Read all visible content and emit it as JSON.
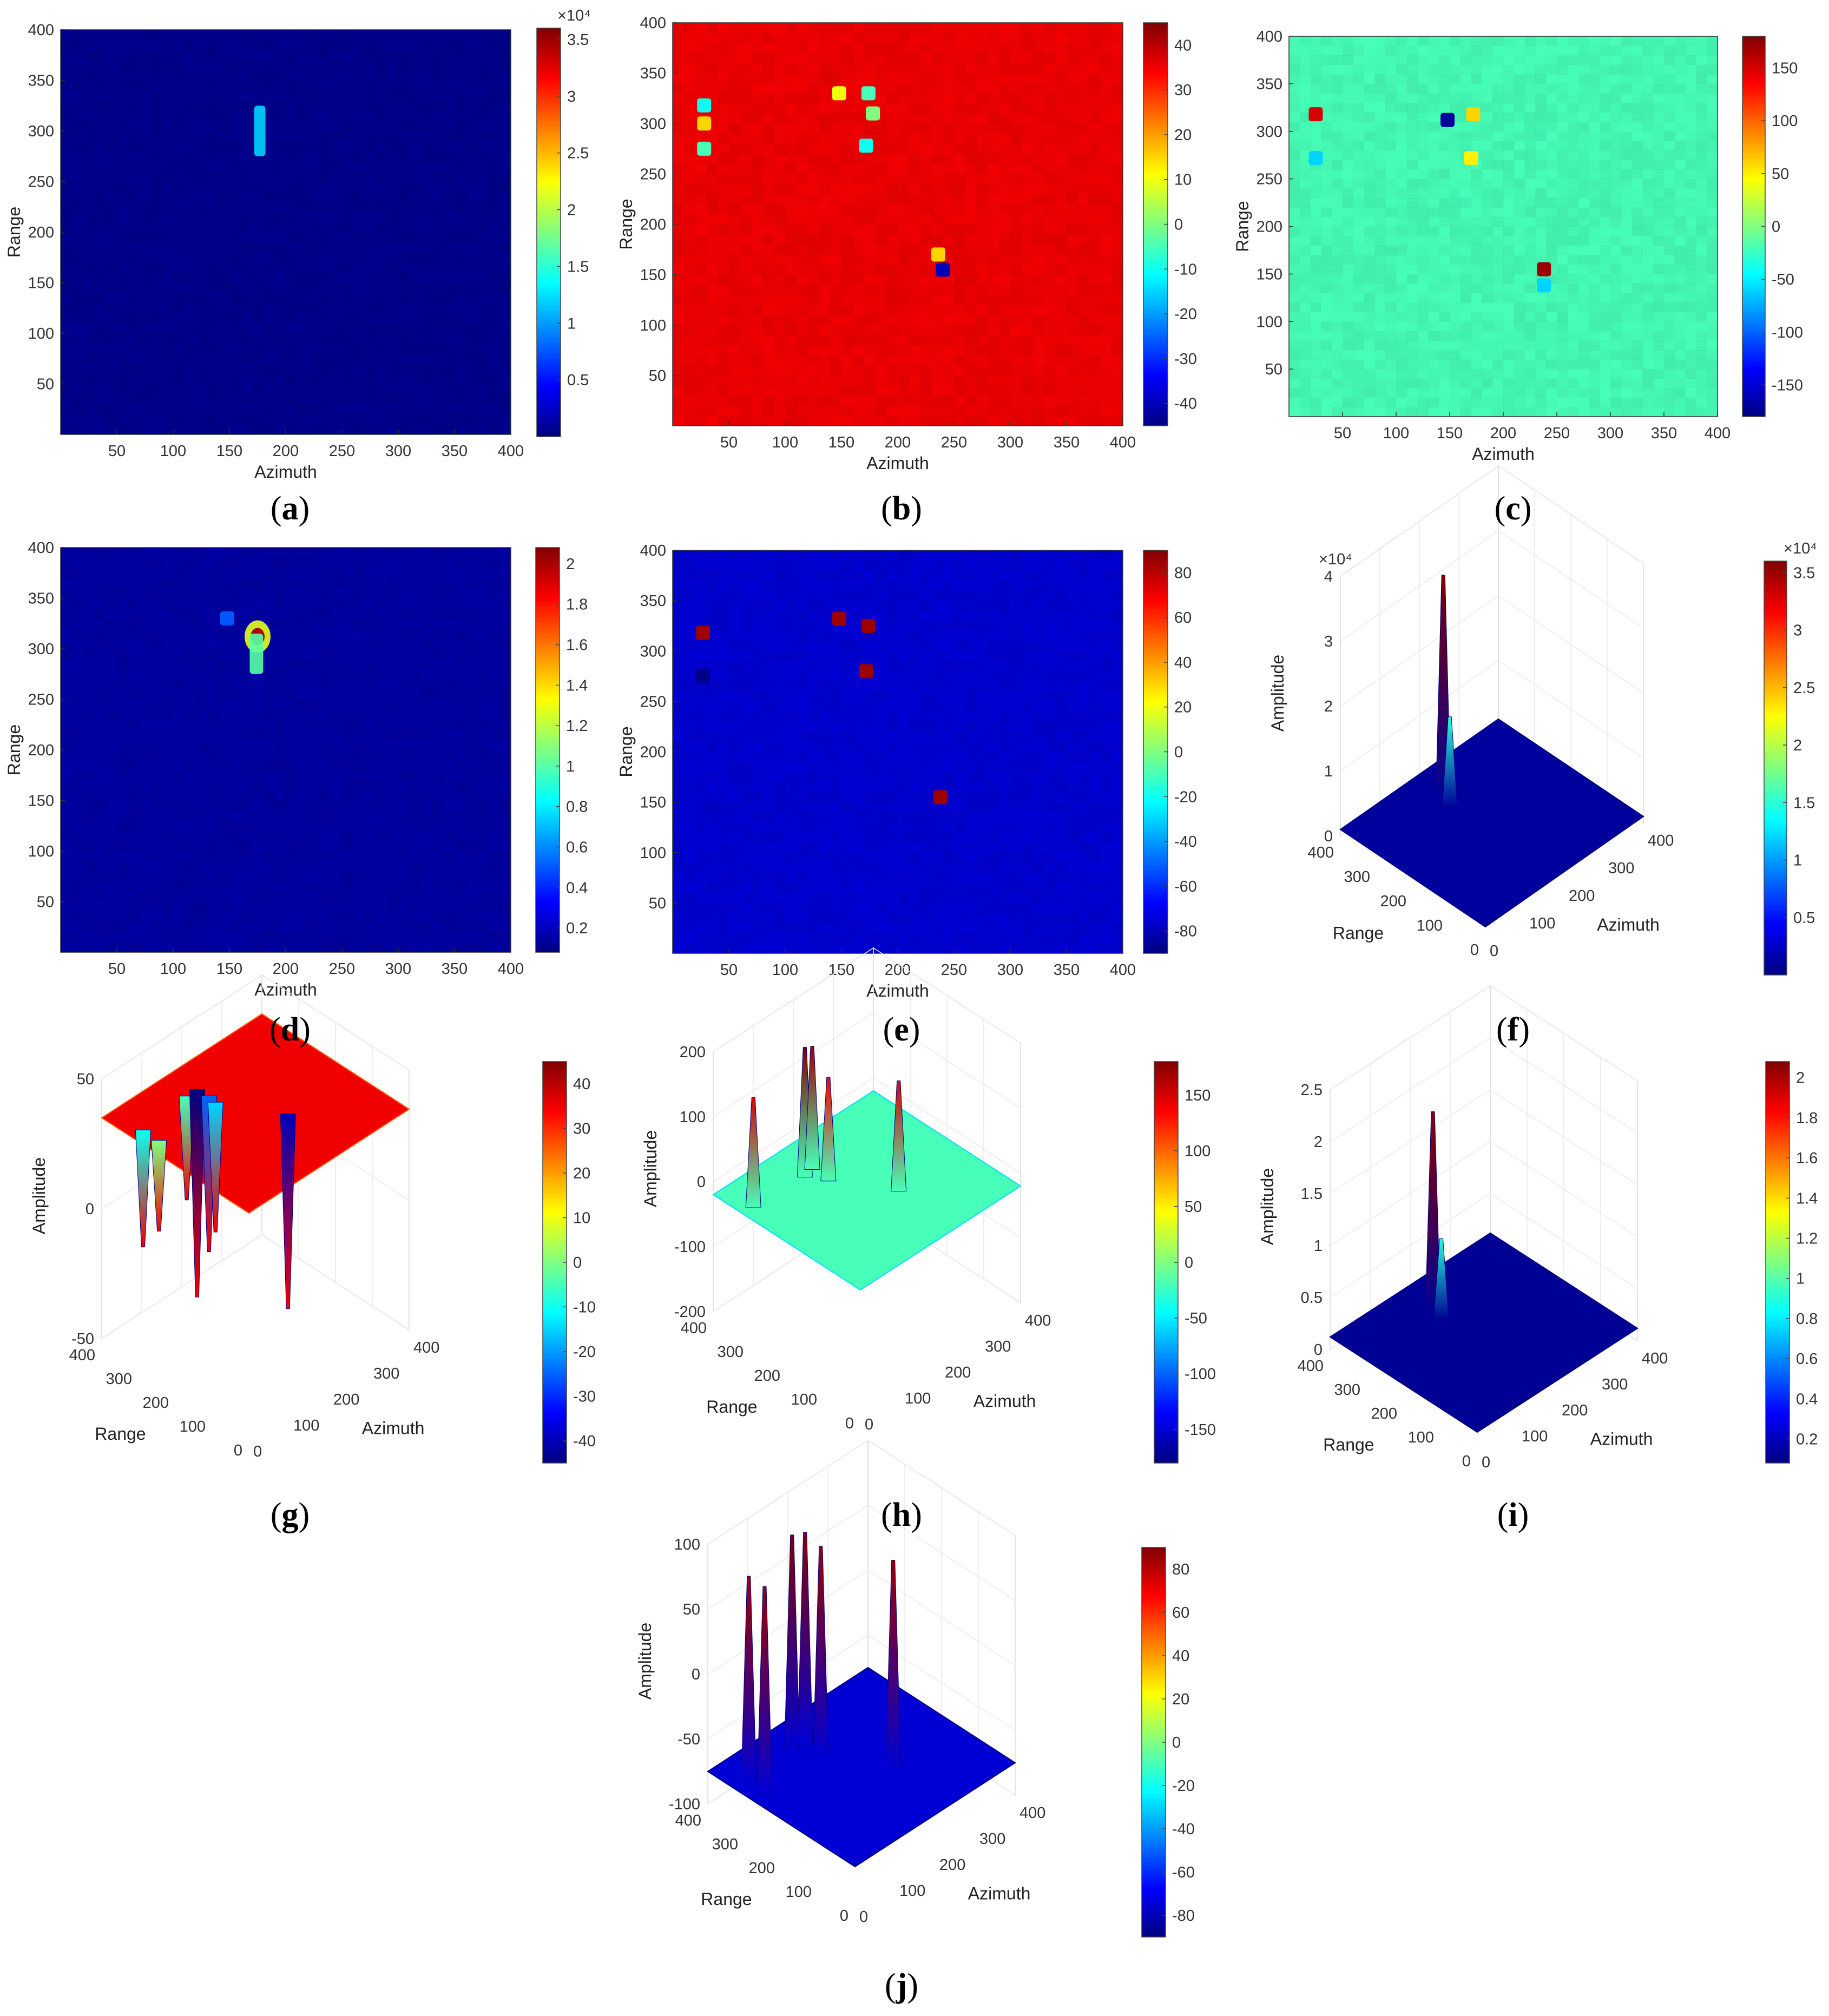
{
  "figure": {
    "panel_letters": [
      "a",
      "b",
      "c",
      "d",
      "e",
      "f",
      "g",
      "h",
      "i",
      "j"
    ]
  },
  "chart_data": [
    {
      "panel": "a",
      "type": "heatmap",
      "view": "2d",
      "xlabel": "Azimuth",
      "ylabel": "Range",
      "x_ticks": [
        50,
        100,
        150,
        200,
        250,
        300,
        350,
        400
      ],
      "y_ticks": [
        50,
        100,
        150,
        200,
        250,
        300,
        350,
        400
      ],
      "xlim": [
        0,
        400
      ],
      "ylim": [
        0,
        400
      ],
      "colorbar_ticks": [
        0.5,
        1,
        1.5,
        2,
        2.5,
        3,
        3.5
      ],
      "colorbar_tick_labels": [
        "0.5",
        "1",
        "1.5",
        "2",
        "2.5",
        "3",
        "3.5"
      ],
      "colorbar_range": [
        0,
        3.6
      ],
      "colorbar_exponent": "×10⁴",
      "background_value": 0.05,
      "features": [
        {
          "type": "streak",
          "azimuth": [
            172,
            182
          ],
          "range": [
            275,
            325
          ],
          "value": 1.2
        }
      ]
    },
    {
      "panel": "b",
      "type": "heatmap",
      "view": "2d",
      "xlabel": "Azimuth",
      "ylabel": "Range",
      "x_ticks": [
        50,
        100,
        150,
        200,
        250,
        300,
        350,
        400
      ],
      "y_ticks": [
        50,
        100,
        150,
        200,
        250,
        300,
        350,
        400
      ],
      "xlim": [
        0,
        400
      ],
      "ylim": [
        0,
        400
      ],
      "colorbar_ticks": [
        -40,
        -30,
        -20,
        -10,
        0,
        10,
        20,
        30,
        40
      ],
      "colorbar_tick_labels": [
        "-40",
        "-30",
        "-20",
        "-10",
        "0",
        "10",
        "20",
        "30",
        "40"
      ],
      "colorbar_range": [
        -45,
        45
      ],
      "background_value": 35,
      "features": [
        {
          "type": "blob",
          "azimuth": 28,
          "range": 318,
          "value": -10
        },
        {
          "type": "blob",
          "azimuth": 28,
          "range": 300,
          "value": 15
        },
        {
          "type": "blob",
          "azimuth": 28,
          "range": 275,
          "value": -5
        },
        {
          "type": "blob",
          "azimuth": 148,
          "range": 330,
          "value": 10
        },
        {
          "type": "blob",
          "azimuth": 174,
          "range": 330,
          "value": -5
        },
        {
          "type": "blob",
          "azimuth": 178,
          "range": 310,
          "value": 0
        },
        {
          "type": "blob",
          "azimuth": 172,
          "range": 278,
          "value": -10
        },
        {
          "type": "blob",
          "azimuth": 240,
          "range": 155,
          "value": -40
        },
        {
          "type": "blob",
          "azimuth": 236,
          "range": 170,
          "value": 15
        }
      ]
    },
    {
      "panel": "c",
      "type": "heatmap",
      "view": "2d",
      "xlabel": "Azimuth",
      "ylabel": "Range",
      "x_ticks": [
        50,
        100,
        150,
        200,
        250,
        300,
        350,
        400
      ],
      "y_ticks": [
        50,
        100,
        150,
        200,
        250,
        300,
        350,
        400
      ],
      "xlim": [
        0,
        400
      ],
      "ylim": [
        0,
        400
      ],
      "colorbar_ticks": [
        -150,
        -100,
        -50,
        0,
        50,
        100,
        150
      ],
      "colorbar_tick_labels": [
        "-150",
        "-100",
        "-50",
        "0",
        "50",
        "100",
        "150"
      ],
      "colorbar_range": [
        -180,
        180
      ],
      "background_value": -20,
      "features": [
        {
          "type": "blob",
          "azimuth": 25,
          "range": 318,
          "value": 150
        },
        {
          "type": "blob",
          "azimuth": 25,
          "range": 272,
          "value": -60
        },
        {
          "type": "blob",
          "azimuth": 148,
          "range": 312,
          "value": -170
        },
        {
          "type": "blob",
          "azimuth": 172,
          "range": 318,
          "value": 60
        },
        {
          "type": "blob",
          "azimuth": 170,
          "range": 272,
          "value": 50
        },
        {
          "type": "blob",
          "azimuth": 238,
          "range": 155,
          "value": 170
        },
        {
          "type": "blob",
          "azimuth": 238,
          "range": 138,
          "value": -60
        }
      ]
    },
    {
      "panel": "d",
      "type": "heatmap",
      "view": "2d",
      "xlabel": "Azimuth",
      "ylabel": "Range",
      "x_ticks": [
        50,
        100,
        150,
        200,
        250,
        300,
        350,
        400
      ],
      "y_ticks": [
        50,
        100,
        150,
        200,
        250,
        300,
        350,
        400
      ],
      "xlim": [
        0,
        400
      ],
      "ylim": [
        0,
        400
      ],
      "colorbar_ticks": [
        0.2,
        0.4,
        0.6,
        0.8,
        1,
        1.2,
        1.4,
        1.6,
        1.8,
        2
      ],
      "colorbar_tick_labels": [
        "0.2",
        "0.4",
        "0.6",
        "0.8",
        "1",
        "1.2",
        "1.4",
        "1.6",
        "1.8",
        "2"
      ],
      "colorbar_range": [
        0.08,
        2.08
      ],
      "background_value": 0.15,
      "features": [
        {
          "type": "peak",
          "azimuth": 175,
          "range": 312,
          "value": 2.0
        },
        {
          "type": "streak",
          "azimuth": [
            168,
            180
          ],
          "range": [
            275,
            315
          ],
          "value": 1.0
        },
        {
          "type": "blob",
          "azimuth": 148,
          "range": 330,
          "value": 0.5
        }
      ]
    },
    {
      "panel": "e",
      "type": "heatmap",
      "view": "2d",
      "xlabel": "Azimuth",
      "ylabel": "Range",
      "x_ticks": [
        50,
        100,
        150,
        200,
        250,
        300,
        350,
        400
      ],
      "y_ticks": [
        50,
        100,
        150,
        200,
        250,
        300,
        350,
        400
      ],
      "xlim": [
        0,
        400
      ],
      "ylim": [
        0,
        400
      ],
      "colorbar_ticks": [
        -80,
        -60,
        -40,
        -20,
        0,
        20,
        40,
        60,
        80
      ],
      "colorbar_tick_labels": [
        "-80",
        "-60",
        "-40",
        "-20",
        "0",
        "20",
        "40",
        "60",
        "80"
      ],
      "colorbar_range": [
        -90,
        90
      ],
      "background_value": -75,
      "features": [
        {
          "type": "blob",
          "azimuth": 27,
          "range": 318,
          "value": 85
        },
        {
          "type": "blob",
          "azimuth": 27,
          "range": 275,
          "value": -88
        },
        {
          "type": "blob",
          "azimuth": 148,
          "range": 332,
          "value": 85
        },
        {
          "type": "blob",
          "azimuth": 174,
          "range": 325,
          "value": 85
        },
        {
          "type": "blob",
          "azimuth": 172,
          "range": 280,
          "value": 85
        },
        {
          "type": "blob",
          "azimuth": 238,
          "range": 155,
          "value": 85
        }
      ]
    },
    {
      "panel": "f",
      "type": "surface",
      "view": "3d",
      "xlabel": "Azimuth",
      "ylabel": "Range",
      "zlabel": "Amplitude",
      "x_ticks": [
        0,
        100,
        200,
        300,
        400
      ],
      "y_ticks": [
        0,
        100,
        200,
        300,
        400
      ],
      "z_ticks": [
        0,
        1,
        2,
        3,
        4
      ],
      "z_tick_labels": [
        "0",
        "1",
        "2",
        "3",
        "4"
      ],
      "zlim": [
        0,
        4
      ],
      "z_exponent": "×10⁴",
      "colorbar_ticks": [
        0.5,
        1,
        1.5,
        2,
        2.5,
        3,
        3.5
      ],
      "colorbar_tick_labels": [
        "0.5",
        "1",
        "1.5",
        "2",
        "2.5",
        "3",
        "3.5"
      ],
      "colorbar_range": [
        0,
        3.6
      ],
      "colorbar_exponent": "×10⁴",
      "base_value": 0.1,
      "peaks": [
        {
          "azimuth": 178,
          "range": 310,
          "value": 3.6
        },
        {
          "azimuth": 176,
          "range": 290,
          "value": 1.5
        }
      ]
    },
    {
      "panel": "g",
      "type": "surface",
      "view": "3d",
      "xlabel": "Azimuth",
      "ylabel": "Range",
      "zlabel": "Amplitude",
      "x_ticks": [
        0,
        100,
        200,
        300,
        400
      ],
      "y_ticks": [
        0,
        100,
        200,
        300,
        400
      ],
      "z_ticks": [
        -50,
        0,
        50
      ],
      "z_tick_labels": [
        "-50",
        "0",
        "50"
      ],
      "zlim": [
        50,
        -50
      ],
      "z_reversed": true,
      "colorbar_ticks": [
        -40,
        -30,
        -20,
        -10,
        0,
        10,
        20,
        30,
        40
      ],
      "colorbar_tick_labels": [
        "-40",
        "-30",
        "-20",
        "-10",
        "0",
        "10",
        "20",
        "30",
        "40"
      ],
      "colorbar_range": [
        -45,
        45
      ],
      "base_value": 35,
      "peaks": [
        {
          "azimuth": 28,
          "range": 318,
          "value": -10
        },
        {
          "azimuth": 28,
          "range": 275,
          "value": 0
        },
        {
          "azimuth": 148,
          "range": 330,
          "value": -5
        },
        {
          "azimuth": 174,
          "range": 330,
          "value": -45
        },
        {
          "azimuth": 176,
          "range": 300,
          "value": -25
        },
        {
          "azimuth": 172,
          "range": 278,
          "value": -15
        },
        {
          "azimuth": 240,
          "range": 155,
          "value": -40
        }
      ]
    },
    {
      "panel": "h",
      "type": "surface",
      "view": "3d",
      "xlabel": "Azimuth",
      "ylabel": "Range",
      "zlabel": "Amplitude",
      "x_ticks": [
        0,
        100,
        200,
        300,
        400
      ],
      "y_ticks": [
        0,
        100,
        200,
        300,
        400
      ],
      "z_ticks": [
        -200,
        -100,
        0,
        100,
        200
      ],
      "z_tick_labels": [
        "-200",
        "-100",
        "0",
        "100",
        "200"
      ],
      "zlim": [
        -200,
        200
      ],
      "colorbar_ticks": [
        -150,
        -100,
        -50,
        0,
        50,
        100,
        150
      ],
      "colorbar_tick_labels": [
        "-150",
        "-100",
        "-50",
        "0",
        "50",
        "100",
        "150"
      ],
      "colorbar_range": [
        -180,
        180
      ],
      "base_value": -20,
      "peaks": [
        {
          "azimuth": 25,
          "range": 318,
          "value": 150
        },
        {
          "azimuth": 148,
          "range": 312,
          "value": 180
        },
        {
          "azimuth": 172,
          "range": 318,
          "value": 170
        },
        {
          "azimuth": 170,
          "range": 272,
          "value": 140
        },
        {
          "azimuth": 238,
          "range": 155,
          "value": 150
        }
      ]
    },
    {
      "panel": "i",
      "type": "surface",
      "view": "3d",
      "xlabel": "Azimuth",
      "ylabel": "Range",
      "zlabel": "Amplitude",
      "x_ticks": [
        0,
        100,
        200,
        300,
        400
      ],
      "y_ticks": [
        0,
        100,
        200,
        300,
        400
      ],
      "z_ticks": [
        0,
        0.5,
        1,
        1.5,
        2,
        2.5
      ],
      "z_tick_labels": [
        "0",
        "0.5",
        "1",
        "1.5",
        "2",
        "2.5"
      ],
      "zlim": [
        0,
        2.5
      ],
      "colorbar_ticks": [
        0.2,
        0.4,
        0.6,
        0.8,
        1,
        1.2,
        1.4,
        1.6,
        1.8,
        2
      ],
      "colorbar_tick_labels": [
        "0.2",
        "0.4",
        "0.6",
        "0.8",
        "1",
        "1.2",
        "1.4",
        "1.6",
        "1.8",
        "2"
      ],
      "colorbar_range": [
        0.08,
        2.08
      ],
      "base_value": 0.12,
      "peaks": [
        {
          "azimuth": 176,
          "range": 312,
          "value": 2.05
        },
        {
          "azimuth": 172,
          "range": 285,
          "value": 0.9
        }
      ]
    },
    {
      "panel": "j",
      "type": "surface",
      "view": "3d",
      "xlabel": "Azimuth",
      "ylabel": "Range",
      "zlabel": "Amplitude",
      "x_ticks": [
        0,
        100,
        200,
        300,
        400
      ],
      "y_ticks": [
        0,
        100,
        200,
        300,
        400
      ],
      "z_ticks": [
        -100,
        -50,
        0,
        50,
        100
      ],
      "z_tick_labels": [
        "-100",
        "-50",
        "0",
        "50",
        "100"
      ],
      "zlim": [
        -100,
        100
      ],
      "colorbar_ticks": [
        -80,
        -60,
        -40,
        -20,
        0,
        20,
        40,
        60,
        80
      ],
      "colorbar_tick_labels": [
        "-80",
        "-60",
        "-40",
        "-20",
        "0",
        "20",
        "40",
        "60",
        "80"
      ],
      "colorbar_range": [
        -90,
        90
      ],
      "base_value": -75,
      "peaks": [
        {
          "azimuth": 27,
          "range": 318,
          "value": 85
        },
        {
          "azimuth": 27,
          "range": 275,
          "value": 85
        },
        {
          "azimuth": 148,
          "range": 332,
          "value": 90
        },
        {
          "azimuth": 174,
          "range": 325,
          "value": 88
        },
        {
          "azimuth": 172,
          "range": 280,
          "value": 86
        },
        {
          "azimuth": 238,
          "range": 155,
          "value": 85
        }
      ]
    }
  ]
}
